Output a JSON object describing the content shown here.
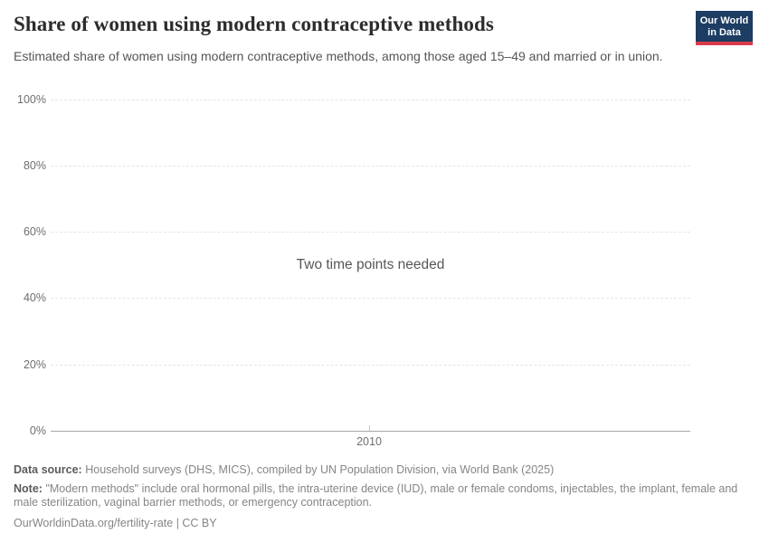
{
  "header": {
    "title": "Share of women using modern contraceptive methods",
    "subtitle": "Estimated share of women using modern contraceptive methods, among those aged 15–49 and married or in union.",
    "logo": {
      "line1": "Our World",
      "line2": "in Data",
      "bg_color": "#1d3d63",
      "accent_color": "#d93a4a"
    }
  },
  "chart_data": {
    "type": "line",
    "title": "Share of women using modern contraceptive methods",
    "empty_state_message": "Two time points needed",
    "series": [],
    "x": [],
    "x_ticks": [
      "2010"
    ],
    "y_ticks": [
      "100%",
      "80%",
      "60%",
      "40%",
      "20%",
      "0%"
    ],
    "ylim": [
      0,
      100
    ],
    "xlabel": "",
    "ylabel": "",
    "grid": true,
    "legend_position": "none"
  },
  "footer": {
    "data_source_label": "Data source:",
    "data_source_text": "Household surveys (DHS, MICS), compiled by UN Population Division, via World Bank (2025)",
    "note_label": "Note:",
    "note_text": "\"Modern methods\" include oral hormonal pills, the intra-uterine device (IUD), male or female condoms, injectables, the implant, female and male sterilization, vaginal barrier methods, or emergency contraception.",
    "citation": "OurWorldinData.org/fertility-rate | CC BY"
  }
}
